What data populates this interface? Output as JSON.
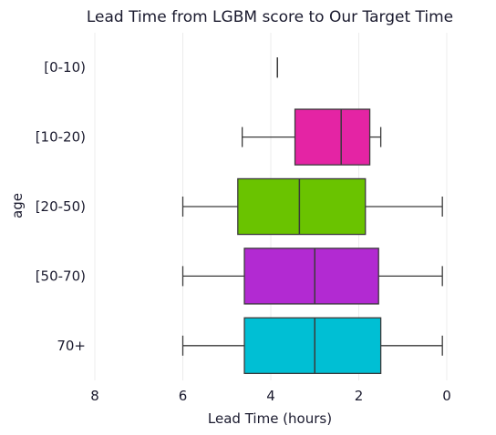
{
  "chart_data": {
    "type": "boxplot",
    "orientation": "horizontal",
    "title": "Lead Time from LGBM score to Our Target Time",
    "xlabel": "Lead Time (hours)",
    "ylabel": "age",
    "xlim": [
      8,
      0
    ],
    "x_inverted": true,
    "x_ticks": [
      "8",
      "6",
      "4",
      "2",
      "0"
    ],
    "grid": "vertical",
    "categories": [
      "[0-10)",
      "[10-20)",
      "[20-50)",
      "[50-70)",
      "70+"
    ],
    "boxes": [
      {
        "category": "[0-10)",
        "whislo": 3.85,
        "q1": 3.85,
        "med": 3.85,
        "q3": 3.85,
        "whishi": 3.85,
        "color": "#4a4a4a"
      },
      {
        "category": "[10-20)",
        "whislo": 1.5,
        "q1": 1.75,
        "med": 2.4,
        "q3": 3.45,
        "whishi": 4.65,
        "color": "#e424a4"
      },
      {
        "category": "[20-50)",
        "whislo": 0.1,
        "q1": 1.85,
        "med": 3.35,
        "q3": 4.75,
        "whishi": 6.0,
        "color": "#6ac300"
      },
      {
        "category": "[50-70)",
        "whislo": 0.1,
        "q1": 1.55,
        "med": 3.0,
        "q3": 4.6,
        "whishi": 6.0,
        "color": "#b22ad2"
      },
      {
        "category": "70+",
        "whislo": 0.1,
        "q1": 1.5,
        "med": 3.0,
        "q3": 4.6,
        "whishi": 6.0,
        "color": "#00bfd4"
      }
    ]
  }
}
